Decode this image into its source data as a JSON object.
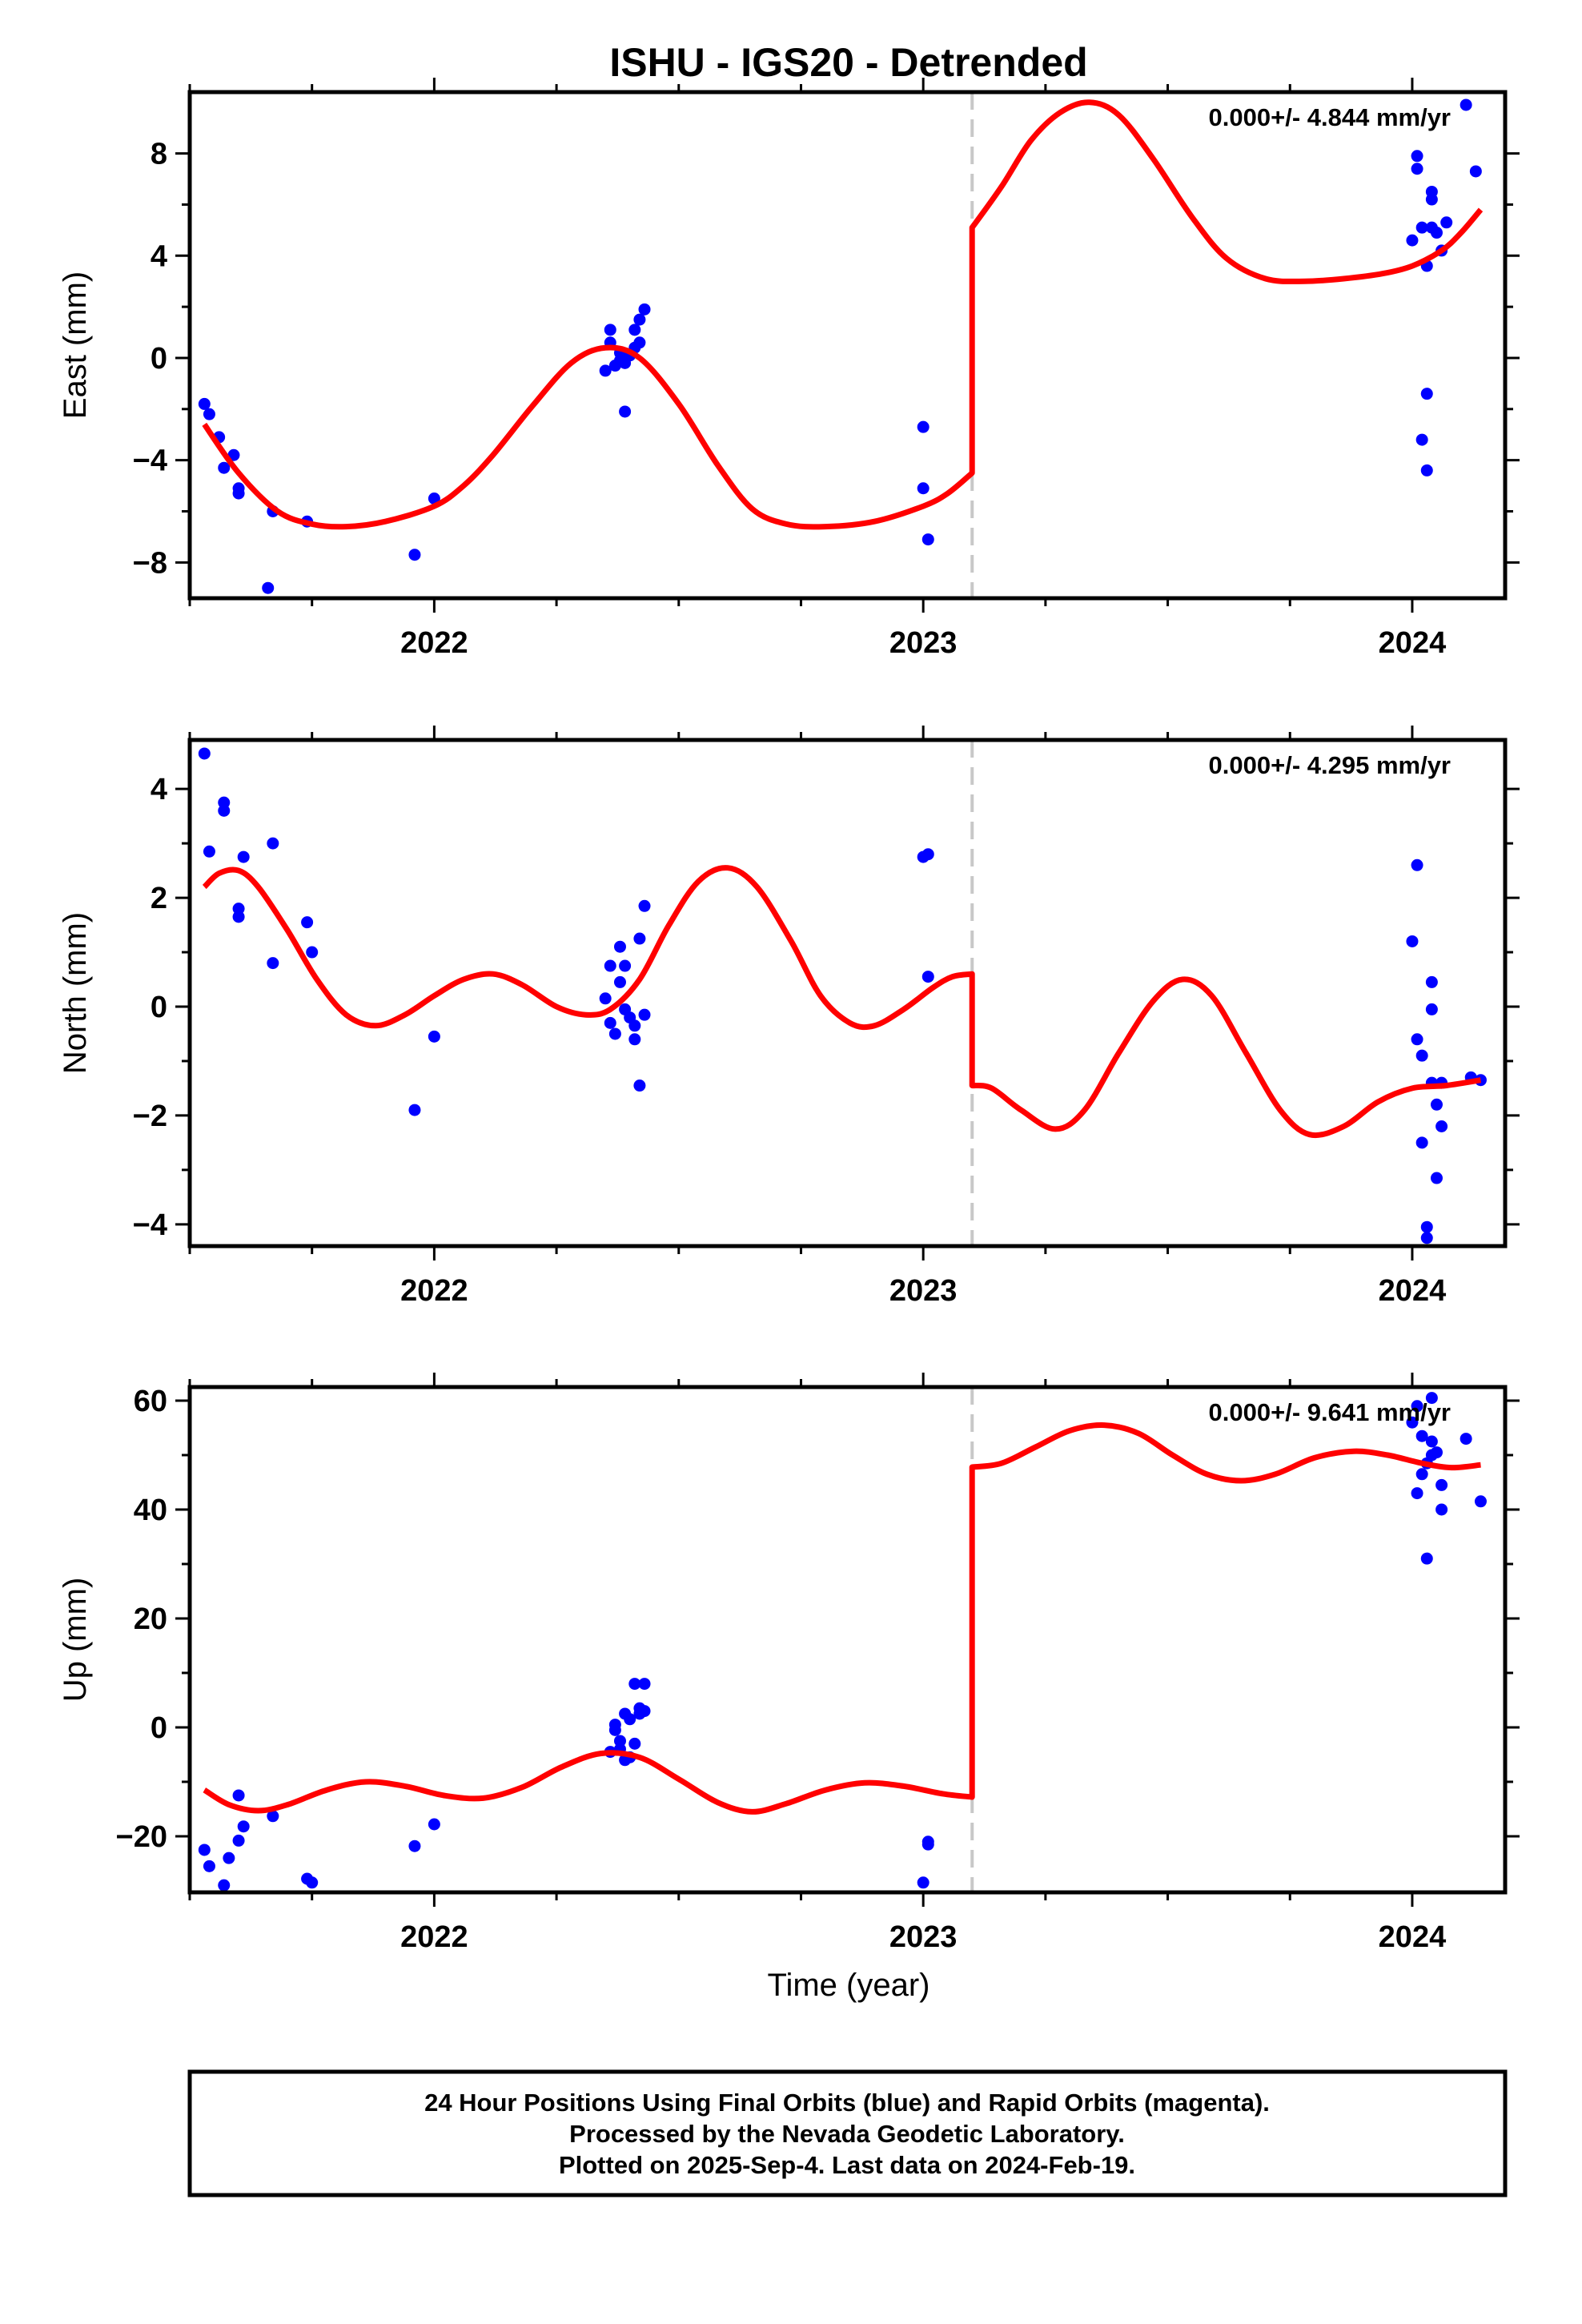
{
  "title": "ISHU - IGS20 - Detrended",
  "xlabel": "Time (year)",
  "colors": {
    "final_orbits": "#0000ff",
    "rapid_orbits": "#ff00ff",
    "model": "#ff0000",
    "offset_line": "#c8c8c8",
    "frame": "#000000"
  },
  "footer": {
    "line1": "24 Hour Positions Using Final Orbits (blue) and Rapid Orbits (magenta).",
    "line2": "Processed by the Nevada Geodetic Laboratory.",
    "line3": "Plotted on 2025-Sep-4. Last data on 2024-Feb-19."
  },
  "chart_data": [
    {
      "type": "scatter",
      "component": "east",
      "ylabel": "East (mm)",
      "rate_text": "0.000+/- 4.844 mm/yr",
      "xlim": [
        2021.5,
        2024.19
      ],
      "ylim": [
        -9.4,
        10.4
      ],
      "xticks": [
        2022,
        2023,
        2024
      ],
      "xtick_labels": [
        "2022",
        "2023",
        "2024"
      ],
      "yticks": [
        -8,
        -4,
        0,
        4,
        8
      ],
      "ytick_labels": [
        "−8",
        "−4",
        "0",
        "4",
        "8"
      ],
      "offset_epoch": 2023.1,
      "points": [
        [
          2021.53,
          -1.8
        ],
        [
          2021.54,
          -2.2
        ],
        [
          2021.56,
          -3.1
        ],
        [
          2021.57,
          -4.3
        ],
        [
          2021.59,
          -3.8
        ],
        [
          2021.6,
          -5.1
        ],
        [
          2021.6,
          -5.3
        ],
        [
          2021.66,
          -9.0
        ],
        [
          2021.67,
          -6.0
        ],
        [
          2021.74,
          -6.4
        ],
        [
          2021.96,
          -7.7
        ],
        [
          2022.0,
          -5.5
        ],
        [
          2022.35,
          -0.5
        ],
        [
          2022.36,
          0.6
        ],
        [
          2022.36,
          1.1
        ],
        [
          2022.37,
          -0.3
        ],
        [
          2022.38,
          -0.1
        ],
        [
          2022.38,
          0.2
        ],
        [
          2022.39,
          -2.1
        ],
        [
          2022.39,
          -0.2
        ],
        [
          2022.4,
          0.1
        ],
        [
          2022.41,
          0.4
        ],
        [
          2022.41,
          1.1
        ],
        [
          2022.42,
          1.5
        ],
        [
          2022.42,
          0.6
        ],
        [
          2022.43,
          1.9
        ],
        [
          2023.0,
          -2.7
        ],
        [
          2023.0,
          -5.1
        ],
        [
          2023.01,
          -7.1
        ],
        [
          2024.0,
          4.6
        ],
        [
          2024.01,
          7.4
        ],
        [
          2024.01,
          7.9
        ],
        [
          2024.02,
          5.1
        ],
        [
          2024.02,
          -3.2
        ],
        [
          2024.03,
          -4.4
        ],
        [
          2024.03,
          -1.4
        ],
        [
          2024.03,
          3.6
        ],
        [
          2024.04,
          5.1
        ],
        [
          2024.04,
          6.2
        ],
        [
          2024.04,
          6.5
        ],
        [
          2024.05,
          4.9
        ],
        [
          2024.06,
          4.2
        ],
        [
          2024.07,
          5.3
        ],
        [
          2024.11,
          9.9
        ],
        [
          2024.13,
          7.3
        ]
      ],
      "model": [
        [
          2021.53,
          -2.6
        ],
        [
          2021.6,
          -4.5
        ],
        [
          2021.68,
          -6.0
        ],
        [
          2021.75,
          -6.5
        ],
        [
          2021.82,
          -6.6
        ],
        [
          2021.9,
          -6.4
        ],
        [
          2022.0,
          -5.8
        ],
        [
          2022.06,
          -5.0
        ],
        [
          2022.12,
          -3.8
        ],
        [
          2022.2,
          -1.9
        ],
        [
          2022.28,
          -0.2
        ],
        [
          2022.35,
          0.4
        ],
        [
          2022.42,
          0.0
        ],
        [
          2022.5,
          -1.8
        ],
        [
          2022.58,
          -4.2
        ],
        [
          2022.65,
          -5.9
        ],
        [
          2022.72,
          -6.5
        ],
        [
          2022.8,
          -6.6
        ],
        [
          2022.9,
          -6.4
        ],
        [
          2023.0,
          -5.8
        ],
        [
          2023.05,
          -5.3
        ],
        [
          2023.1,
          -4.5
        ],
        [
          2023.1,
          5.1
        ],
        [
          2023.16,
          6.7
        ],
        [
          2023.22,
          8.5
        ],
        [
          2023.28,
          9.6
        ],
        [
          2023.34,
          10.0
        ],
        [
          2023.4,
          9.5
        ],
        [
          2023.47,
          7.8
        ],
        [
          2023.55,
          5.5
        ],
        [
          2023.62,
          3.9
        ],
        [
          2023.7,
          3.1
        ],
        [
          2023.78,
          3.0
        ],
        [
          2023.86,
          3.1
        ],
        [
          2023.94,
          3.3
        ],
        [
          2024.0,
          3.6
        ],
        [
          2024.06,
          4.2
        ],
        [
          2024.1,
          4.9
        ],
        [
          2024.14,
          5.8
        ]
      ]
    },
    {
      "type": "scatter",
      "component": "north",
      "ylabel": "North (mm)",
      "rate_text": "0.000+/- 4.295 mm/yr",
      "xlim": [
        2021.5,
        2024.19
      ],
      "ylim": [
        -4.4,
        4.9
      ],
      "xticks": [
        2022,
        2023,
        2024
      ],
      "xtick_labels": [
        "2022",
        "2023",
        "2024"
      ],
      "yticks": [
        -4,
        -2,
        0,
        2,
        4
      ],
      "ytick_labels": [
        "−4",
        "−2",
        "0",
        "2",
        "4"
      ],
      "offset_epoch": 2023.1,
      "points": [
        [
          2021.53,
          4.65
        ],
        [
          2021.54,
          2.85
        ],
        [
          2021.57,
          3.75
        ],
        [
          2021.57,
          3.6
        ],
        [
          2021.6,
          1.8
        ],
        [
          2021.6,
          1.65
        ],
        [
          2021.61,
          2.75
        ],
        [
          2021.67,
          3.0
        ],
        [
          2021.67,
          0.8
        ],
        [
          2021.74,
          1.55
        ],
        [
          2021.75,
          1.0
        ],
        [
          2021.96,
          -1.9
        ],
        [
          2022.0,
          -0.55
        ],
        [
          2022.35,
          0.15
        ],
        [
          2022.36,
          0.75
        ],
        [
          2022.36,
          -0.3
        ],
        [
          2022.37,
          -0.5
        ],
        [
          2022.38,
          0.45
        ],
        [
          2022.38,
          1.1
        ],
        [
          2022.39,
          0.75
        ],
        [
          2022.39,
          -0.05
        ],
        [
          2022.4,
          -0.2
        ],
        [
          2022.41,
          -0.35
        ],
        [
          2022.41,
          -0.6
        ],
        [
          2022.42,
          -1.45
        ],
        [
          2022.42,
          1.25
        ],
        [
          2022.43,
          1.85
        ],
        [
          2022.43,
          -0.15
        ],
        [
          2023.0,
          2.75
        ],
        [
          2023.01,
          2.8
        ],
        [
          2023.01,
          0.55
        ],
        [
          2024.0,
          1.2
        ],
        [
          2024.01,
          2.6
        ],
        [
          2024.01,
          -0.6
        ],
        [
          2024.02,
          -0.9
        ],
        [
          2024.02,
          -2.5
        ],
        [
          2024.03,
          -4.05
        ],
        [
          2024.03,
          -4.25
        ],
        [
          2024.04,
          0.45
        ],
        [
          2024.04,
          -0.05
        ],
        [
          2024.04,
          -1.4
        ],
        [
          2024.05,
          -1.8
        ],
        [
          2024.05,
          -3.15
        ],
        [
          2024.06,
          -2.2
        ],
        [
          2024.06,
          -1.4
        ],
        [
          2024.12,
          -1.3
        ],
        [
          2024.14,
          -1.35
        ]
      ],
      "model": [
        [
          2021.53,
          2.2
        ],
        [
          2021.56,
          2.45
        ],
        [
          2021.6,
          2.5
        ],
        [
          2021.64,
          2.2
        ],
        [
          2021.7,
          1.4
        ],
        [
          2021.76,
          0.5
        ],
        [
          2021.82,
          -0.15
        ],
        [
          2021.88,
          -0.35
        ],
        [
          2021.94,
          -0.15
        ],
        [
          2022.0,
          0.2
        ],
        [
          2022.06,
          0.5
        ],
        [
          2022.12,
          0.6
        ],
        [
          2022.18,
          0.4
        ],
        [
          2022.25,
          0.0
        ],
        [
          2022.31,
          -0.15
        ],
        [
          2022.36,
          -0.05
        ],
        [
          2022.42,
          0.5
        ],
        [
          2022.48,
          1.5
        ],
        [
          2022.54,
          2.3
        ],
        [
          2022.6,
          2.55
        ],
        [
          2022.66,
          2.2
        ],
        [
          2022.73,
          1.2
        ],
        [
          2022.79,
          0.2
        ],
        [
          2022.85,
          -0.3
        ],
        [
          2022.9,
          -0.35
        ],
        [
          2022.96,
          -0.05
        ],
        [
          2023.02,
          0.35
        ],
        [
          2023.06,
          0.55
        ],
        [
          2023.1,
          0.6
        ],
        [
          2023.1,
          -1.45
        ],
        [
          2023.14,
          -1.5
        ],
        [
          2023.2,
          -1.9
        ],
        [
          2023.27,
          -2.25
        ],
        [
          2023.33,
          -1.9
        ],
        [
          2023.4,
          -0.85
        ],
        [
          2023.47,
          0.1
        ],
        [
          2023.53,
          0.5
        ],
        [
          2023.59,
          0.2
        ],
        [
          2023.66,
          -0.85
        ],
        [
          2023.73,
          -1.9
        ],
        [
          2023.79,
          -2.35
        ],
        [
          2023.86,
          -2.2
        ],
        [
          2023.93,
          -1.75
        ],
        [
          2024.0,
          -1.5
        ],
        [
          2024.07,
          -1.45
        ],
        [
          2024.14,
          -1.35
        ]
      ]
    },
    {
      "type": "scatter",
      "component": "up",
      "ylabel": "Up (mm)",
      "rate_text": "0.000+/- 9.641 mm/yr",
      "xlim": [
        2021.5,
        2024.19
      ],
      "ylim": [
        -30.3,
        62.5
      ],
      "xticks": [
        2022,
        2023,
        2024
      ],
      "xtick_labels": [
        "2022",
        "2023",
        "2024"
      ],
      "yticks": [
        -20,
        0,
        20,
        40,
        60
      ],
      "ytick_labels": [
        "−20",
        "0",
        "20",
        "40",
        "60"
      ],
      "offset_epoch": 2023.1,
      "points": [
        [
          2021.53,
          -22.5
        ],
        [
          2021.54,
          -25.5
        ],
        [
          2021.57,
          -29.0
        ],
        [
          2021.58,
          -24.0
        ],
        [
          2021.6,
          -12.5
        ],
        [
          2021.6,
          -20.8
        ],
        [
          2021.61,
          -18.2
        ],
        [
          2021.67,
          -16.3
        ],
        [
          2021.74,
          -27.8
        ],
        [
          2021.75,
          -28.5
        ],
        [
          2021.96,
          -21.8
        ],
        [
          2022.0,
          -17.8
        ],
        [
          2022.36,
          -4.5
        ],
        [
          2022.37,
          -0.5
        ],
        [
          2022.37,
          0.5
        ],
        [
          2022.38,
          -2.5
        ],
        [
          2022.38,
          -4.0
        ],
        [
          2022.39,
          -6.0
        ],
        [
          2022.39,
          2.5
        ],
        [
          2022.4,
          -5.5
        ],
        [
          2022.4,
          1.5
        ],
        [
          2022.41,
          8.0
        ],
        [
          2022.41,
          -3.0
        ],
        [
          2022.42,
          2.5
        ],
        [
          2022.42,
          3.5
        ],
        [
          2022.43,
          8.0
        ],
        [
          2022.43,
          3.0
        ],
        [
          2023.0,
          -28.5
        ],
        [
          2023.01,
          -21.5
        ],
        [
          2023.01,
          -21.0
        ],
        [
          2024.0,
          56.0
        ],
        [
          2024.01,
          59.0
        ],
        [
          2024.01,
          43.0
        ],
        [
          2024.02,
          53.5
        ],
        [
          2024.02,
          46.5
        ],
        [
          2024.03,
          31.0
        ],
        [
          2024.03,
          48.5
        ],
        [
          2024.04,
          50.0
        ],
        [
          2024.04,
          52.5
        ],
        [
          2024.04,
          60.5
        ],
        [
          2024.05,
          50.5
        ],
        [
          2024.06,
          44.5
        ],
        [
          2024.06,
          40.0
        ],
        [
          2024.11,
          53.0
        ],
        [
          2024.14,
          41.5
        ]
      ],
      "model": [
        [
          2021.53,
          -11.5
        ],
        [
          2021.58,
          -14.2
        ],
        [
          2021.64,
          -15.3
        ],
        [
          2021.7,
          -14.2
        ],
        [
          2021.78,
          -11.5
        ],
        [
          2021.86,
          -10.0
        ],
        [
          2021.94,
          -10.8
        ],
        [
          2022.02,
          -12.5
        ],
        [
          2022.1,
          -13.0
        ],
        [
          2022.18,
          -11.0
        ],
        [
          2022.26,
          -7.3
        ],
        [
          2022.34,
          -4.8
        ],
        [
          2022.42,
          -5.5
        ],
        [
          2022.5,
          -9.5
        ],
        [
          2022.58,
          -13.8
        ],
        [
          2022.65,
          -15.5
        ],
        [
          2022.72,
          -14.0
        ],
        [
          2022.8,
          -11.5
        ],
        [
          2022.88,
          -10.2
        ],
        [
          2022.96,
          -10.8
        ],
        [
          2023.04,
          -12.2
        ],
        [
          2023.1,
          -12.8
        ],
        [
          2023.1,
          47.8
        ],
        [
          2023.16,
          48.5
        ],
        [
          2023.23,
          51.5
        ],
        [
          2023.3,
          54.5
        ],
        [
          2023.37,
          55.5
        ],
        [
          2023.44,
          54.0
        ],
        [
          2023.51,
          50.0
        ],
        [
          2023.58,
          46.5
        ],
        [
          2023.65,
          45.3
        ],
        [
          2023.72,
          46.5
        ],
        [
          2023.8,
          49.5
        ],
        [
          2023.88,
          50.7
        ],
        [
          2023.95,
          50.0
        ],
        [
          2024.02,
          48.5
        ],
        [
          2024.08,
          47.7
        ],
        [
          2024.14,
          48.2
        ]
      ]
    }
  ]
}
